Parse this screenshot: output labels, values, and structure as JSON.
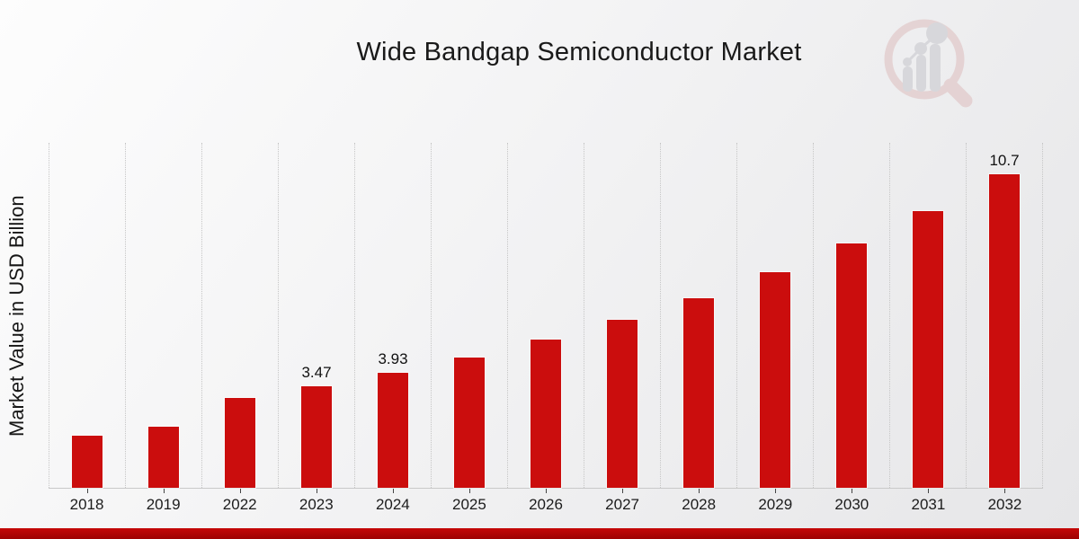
{
  "title": "Wide Bandgap Semiconductor Market",
  "ylabel": "Market Value in USD Billion",
  "watermark_icon": "magnifier-bar-chart-logo",
  "colors": {
    "bar": "#CB0D0D",
    "footer_red": "#B00404",
    "gridline": "#C6C6C6",
    "text": "#1A1A1A",
    "watermark_pink": "#DCB9B9",
    "watermark_gray": "#C2C2C8"
  },
  "chart_data": {
    "type": "bar",
    "title": "Wide Bandgap Semiconductor Market",
    "xlabel": "",
    "ylabel": "Market Value in USD Billion",
    "categories": [
      "2018",
      "2019",
      "2022",
      "2023",
      "2024",
      "2025",
      "2026",
      "2027",
      "2028",
      "2029",
      "2030",
      "2031",
      "2032"
    ],
    "values": [
      1.79,
      2.08,
      3.06,
      3.47,
      3.93,
      4.45,
      5.05,
      5.72,
      6.48,
      7.35,
      8.33,
      9.44,
      10.7
    ],
    "point_labels": [
      "",
      "",
      "",
      "3.47",
      "3.93",
      "",
      "",
      "",
      "",
      "",
      "",
      "",
      "10.7"
    ],
    "ylim": [
      0,
      11.8
    ],
    "grid": "vertical-dotted",
    "legend": "none",
    "bar_color": "#CB0D0D"
  }
}
